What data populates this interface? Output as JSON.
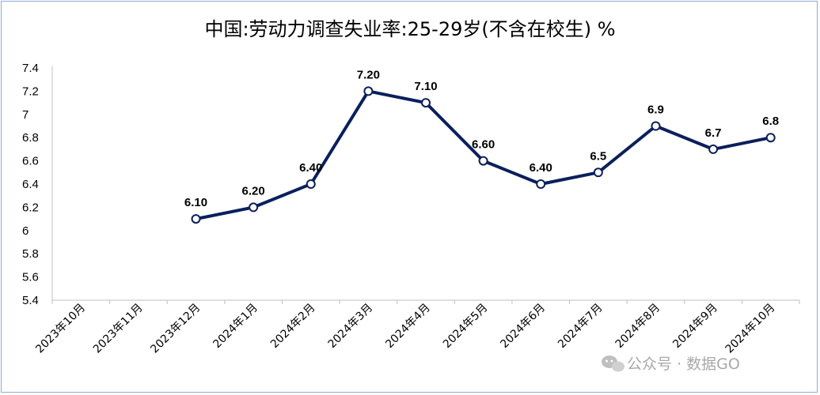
{
  "chart_data": {
    "type": "line",
    "title": "中国:劳动力调查失业率:25-29岁(不含在校生) %",
    "xlabel": "",
    "ylabel": "",
    "categories": [
      "2023年10月",
      "2023年11月",
      "2023年12月",
      "2024年1月",
      "2024年2月",
      "2024年3月",
      "2024年4月",
      "2024年5月",
      "2024年6月",
      "2024年7月",
      "2024年8月",
      "2024年9月",
      "2024年10月"
    ],
    "series": [
      {
        "values": [
          null,
          null,
          6.1,
          6.2,
          6.4,
          7.2,
          7.1,
          6.6,
          6.4,
          6.5,
          6.9,
          6.7,
          6.8
        ],
        "labels": [
          null,
          null,
          "6.10",
          "6.20",
          "6.40",
          "7.20",
          "7.10",
          "6.60",
          "6.40",
          "6.5",
          "6.9",
          "6.7",
          "6.8"
        ],
        "color": "#0b1f5c"
      }
    ],
    "yticks": [
      "5.4",
      "5.6",
      "5.8",
      "6",
      "6.2",
      "6.4",
      "6.6",
      "6.8",
      "7",
      "7.2",
      "7.4"
    ],
    "ylim": [
      5.4,
      7.4
    ],
    "grid": false,
    "legend": "none",
    "marker": "circle"
  },
  "watermark": {
    "icon": "wechat-icon",
    "text": "公众号 · 数据GO"
  }
}
